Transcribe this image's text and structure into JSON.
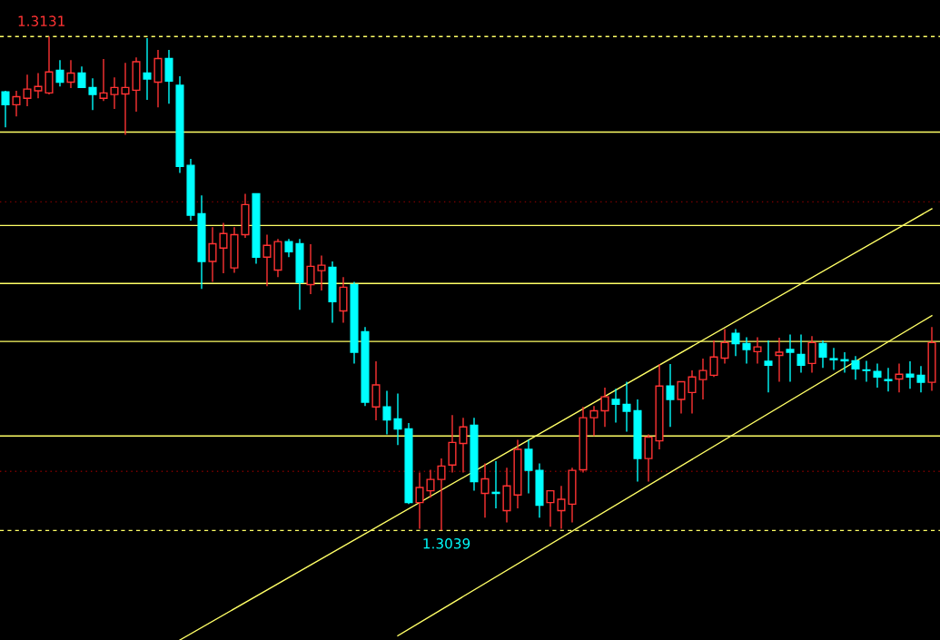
{
  "chart_data": {
    "type": "candlestick",
    "categories": [
      null,
      null,
      null,
      null,
      null,
      null,
      null,
      null,
      null,
      null,
      null,
      null,
      null,
      null,
      null,
      null,
      null,
      null,
      null,
      null,
      null,
      null,
      null,
      null,
      null,
      null,
      null,
      null,
      null,
      null,
      null,
      null,
      null,
      null,
      null,
      null,
      null,
      null,
      null,
      null,
      null,
      null,
      null,
      null,
      null,
      null,
      null,
      null,
      null,
      null,
      null,
      null,
      null,
      null,
      null,
      null,
      null,
      null,
      null,
      null,
      null,
      null,
      null,
      null,
      null,
      null,
      null,
      null,
      null,
      null,
      null,
      null,
      null,
      null,
      null,
      null,
      null,
      null,
      null,
      null,
      null,
      null,
      null,
      null,
      null,
      null
    ],
    "ohlc": [
      [
        1.31207,
        1.31209,
        1.31141,
        1.31183
      ],
      [
        1.31183,
        1.31209,
        1.31161,
        1.31198
      ],
      [
        1.31195,
        1.31239,
        1.3118,
        1.31212
      ],
      [
        1.31209,
        1.31242,
        1.31195,
        1.31217
      ],
      [
        1.31205,
        1.3131,
        1.31202,
        1.31244
      ],
      [
        1.31247,
        1.31266,
        1.31217,
        1.31225
      ],
      [
        1.31225,
        1.31266,
        1.31214,
        1.31242
      ],
      [
        1.31242,
        1.31254,
        1.31214,
        1.31215
      ],
      [
        1.31215,
        1.31232,
        1.31173,
        1.31202
      ],
      [
        1.31195,
        1.31268,
        1.3119,
        1.31205
      ],
      [
        1.31202,
        1.31234,
        1.31175,
        1.31215
      ],
      [
        1.31203,
        1.31261,
        1.31127,
        1.31215
      ],
      [
        1.3121,
        1.31271,
        1.3117,
        1.31263
      ],
      [
        1.31242,
        1.31307,
        1.31192,
        1.31231
      ],
      [
        1.31225,
        1.31285,
        1.31178,
        1.31269
      ],
      [
        1.31269,
        1.31285,
        1.31185,
        1.31227
      ],
      [
        1.31219,
        1.31236,
        1.31056,
        1.31068
      ],
      [
        1.3107,
        1.31082,
        1.30967,
        1.30977
      ],
      [
        1.3098,
        1.31014,
        1.3084,
        1.30891
      ],
      [
        1.30891,
        1.30955,
        1.30853,
        1.30924
      ],
      [
        1.30916,
        1.30963,
        1.30869,
        1.30943
      ],
      [
        1.30879,
        1.30955,
        1.3087,
        1.30941
      ],
      [
        1.30941,
        1.31017,
        1.30935,
        1.30997
      ],
      [
        1.31017,
        1.31017,
        1.30887,
        1.30899
      ],
      [
        1.30899,
        1.30941,
        1.30845,
        1.30921
      ],
      [
        1.30875,
        1.30933,
        1.30862,
        1.30928
      ],
      [
        1.30928,
        1.30933,
        1.30899,
        1.30909
      ],
      [
        1.30924,
        1.30933,
        1.30801,
        1.30852
      ],
      [
        1.30848,
        1.30923,
        1.3083,
        1.30882
      ],
      [
        1.30874,
        1.30902,
        1.30837,
        1.30884
      ],
      [
        1.3088,
        1.30891,
        1.30777,
        1.30816
      ],
      [
        1.30799,
        1.30862,
        1.30777,
        1.30843
      ],
      [
        1.30848,
        1.30853,
        1.30701,
        1.30722
      ],
      [
        1.3076,
        1.30769,
        1.30622,
        1.30629
      ],
      [
        1.3062,
        1.30705,
        1.30595,
        1.30661
      ],
      [
        1.3062,
        1.3065,
        1.30569,
        1.30596
      ],
      [
        1.30598,
        1.30645,
        1.30549,
        1.30579
      ],
      [
        1.30579,
        1.3059,
        1.30439,
        1.30442
      ],
      [
        1.30442,
        1.30498,
        1.30393,
        1.3047
      ],
      [
        1.30464,
        1.30503,
        1.30451,
        1.30485
      ],
      [
        1.30485,
        1.30524,
        1.3039,
        1.3051
      ],
      [
        1.30512,
        1.30605,
        1.30498,
        1.30554
      ],
      [
        1.30552,
        1.306,
        1.30498,
        1.30583
      ],
      [
        1.30586,
        1.306,
        1.30464,
        1.30481
      ],
      [
        1.30459,
        1.30515,
        1.30414,
        1.30486
      ],
      [
        1.30461,
        1.30519,
        1.30431,
        1.30459
      ],
      [
        1.30427,
        1.30507,
        1.30405,
        1.30473
      ],
      [
        1.30456,
        1.30559,
        1.30431,
        1.30541
      ],
      [
        1.30541,
        1.30559,
        1.30459,
        1.30502
      ],
      [
        1.30502,
        1.30515,
        1.30414,
        1.30437
      ],
      [
        1.30442,
        1.30464,
        1.30397,
        1.30464
      ],
      [
        1.30427,
        1.30473,
        1.30393,
        1.30448
      ],
      [
        1.30439,
        1.30507,
        1.30405,
        1.30502
      ],
      [
        1.30503,
        1.3062,
        1.30498,
        1.306
      ],
      [
        1.306,
        1.30622,
        1.30566,
        1.30613
      ],
      [
        1.30613,
        1.30656,
        1.30583,
        1.30639
      ],
      [
        1.30634,
        1.30654,
        1.30591,
        1.30625
      ],
      [
        1.30625,
        1.30667,
        1.30574,
        1.30612
      ],
      [
        1.30613,
        1.30634,
        1.30481,
        1.30524
      ],
      [
        1.30524,
        1.30569,
        1.30481,
        1.30564
      ],
      [
        1.30557,
        1.307,
        1.30541,
        1.30659
      ],
      [
        1.30659,
        1.307,
        1.30583,
        1.30634
      ],
      [
        1.30634,
        1.30667,
        1.30608,
        1.30667
      ],
      [
        1.30647,
        1.30688,
        1.30608,
        1.30676
      ],
      [
        1.30671,
        1.3071,
        1.30634,
        1.30688
      ],
      [
        1.30679,
        1.30744,
        1.30676,
        1.30713
      ],
      [
        1.30711,
        1.30765,
        1.30701,
        1.3074
      ],
      [
        1.30757,
        1.30765,
        1.30715,
        1.30738
      ],
      [
        1.30738,
        1.3075,
        1.30701,
        1.30727
      ],
      [
        1.30723,
        1.3075,
        1.30701,
        1.30732
      ],
      [
        1.30705,
        1.30744,
        1.30647,
        1.30698
      ],
      [
        1.30716,
        1.30749,
        1.30667,
        1.30722
      ],
      [
        1.30727,
        1.30755,
        1.30667,
        1.30722
      ],
      [
        1.30718,
        1.30755,
        1.30684,
        1.30698
      ],
      [
        1.30701,
        1.30752,
        1.30684,
        1.3074
      ],
      [
        1.30738,
        1.30744,
        1.30693,
        1.30713
      ],
      [
        1.3071,
        1.3073,
        1.30689,
        1.30708
      ],
      [
        1.30708,
        1.30722,
        1.30684,
        1.30706
      ],
      [
        1.30706,
        1.30715,
        1.30671,
        1.30691
      ],
      [
        1.30689,
        1.30706,
        1.30667,
        1.30688
      ],
      [
        1.30686,
        1.30701,
        1.30656,
        1.30676
      ],
      [
        1.30671,
        1.30693,
        1.30649,
        1.30669
      ],
      [
        1.30672,
        1.30701,
        1.30647,
        1.30681
      ],
      [
        1.30681,
        1.30705,
        1.30654,
        1.30676
      ],
      [
        1.30679,
        1.30696,
        1.30647,
        1.30666
      ],
      [
        1.30666,
        1.30769,
        1.3065,
        1.3074
      ]
    ],
    "series": [
      {
        "type": "line",
        "color": "#ffff66",
        "values": [
          null,
          null,
          null,
          null,
          null,
          null,
          null,
          null,
          null,
          null,
          null,
          null,
          null,
          null,
          null,
          null,
          1.30186,
          null,
          null,
          null,
          null,
          null,
          null,
          null,
          null,
          null,
          null,
          null,
          null,
          null,
          null,
          null,
          null,
          null,
          null,
          null,
          null,
          null,
          null,
          null,
          null,
          null,
          null,
          null,
          null,
          null,
          null,
          null,
          null,
          null,
          null,
          null,
          null,
          null,
          null,
          null,
          null,
          null,
          null,
          null,
          null,
          null,
          null,
          null,
          null,
          null,
          null,
          null,
          null,
          null,
          null,
          null,
          null,
          null,
          null,
          null,
          null,
          null,
          null,
          null,
          null,
          null,
          null,
          null,
          null,
          1.30989
        ]
      },
      {
        "type": "line",
        "color": "#ffff66",
        "values": [
          null,
          null,
          null,
          null,
          null,
          null,
          null,
          null,
          null,
          null,
          null,
          null,
          null,
          null,
          null,
          null,
          null,
          null,
          null,
          null,
          null,
          null,
          null,
          null,
          null,
          null,
          null,
          null,
          null,
          null,
          null,
          null,
          null,
          null,
          null,
          null,
          1.30194,
          null,
          null,
          null,
          null,
          null,
          null,
          null,
          null,
          null,
          null,
          null,
          null,
          null,
          null,
          null,
          null,
          null,
          null,
          null,
          null,
          null,
          null,
          null,
          null,
          null,
          null,
          null,
          null,
          null,
          null,
          null,
          null,
          null,
          null,
          null,
          null,
          null,
          null,
          null,
          null,
          null,
          null,
          null,
          null,
          null,
          null,
          null,
          null,
          1.3079
        ]
      }
    ],
    "colors": [
      "#00ffff",
      "#ff3333",
      "#ff3333",
      "#ff3333",
      "#ff3333",
      "#00ffff",
      "#ff3333",
      "#00ffff",
      "#00ffff",
      "#ff3333",
      "#ff3333",
      "#ff3333",
      "#ff3333",
      "#00ffff",
      "#ff3333",
      "#00ffff",
      "#00ffff",
      "#00ffff",
      "#00ffff",
      "#ff3333",
      "#ff3333",
      "#ff3333",
      "#ff3333",
      "#00ffff",
      "#ff3333",
      "#ff3333",
      "#00ffff",
      "#00ffff",
      "#ff3333",
      "#ff3333",
      "#00ffff",
      "#ff3333",
      "#00ffff",
      "#00ffff",
      "#ff3333",
      "#00ffff",
      "#00ffff",
      "#00ffff",
      "#ff3333",
      "#ff3333",
      "#ff3333",
      "#ff3333",
      "#ff3333",
      "#00ffff",
      "#ff3333",
      "#00ffff",
      "#ff3333",
      "#ff3333",
      "#00ffff",
      "#00ffff",
      "#ff3333",
      "#ff3333",
      "#ff3333",
      "#ff3333",
      "#ff3333",
      "#ff3333",
      "#00ffff",
      "#00ffff",
      "#00ffff",
      "#ff3333",
      "#ff3333",
      "#00ffff",
      "#ff3333",
      "#ff3333",
      "#ff3333",
      "#ff3333",
      "#ff3333",
      "#00ffff",
      "#00ffff",
      "#ff3333",
      "#00ffff",
      "#ff3333",
      "#00ffff",
      "#00ffff",
      "#ff3333",
      "#00ffff",
      "#00ffff",
      "#00ffff",
      "#00ffff",
      "#00ffff",
      "#00ffff",
      "#00ffff",
      "#ff3333",
      "#00ffff",
      "#00ffff",
      "#ff3333"
    ],
    "ylim": [
      1.30186,
      1.31378
    ],
    "ref_lines": [
      {
        "axis": "y",
        "value": 1.3131,
        "color": "#ffff66",
        "line_style": "dashed"
      },
      {
        "axis": "y",
        "value": 1.31132,
        "color": "#ffff66",
        "line_style": "solid"
      },
      {
        "axis": "y",
        "value": 1.31002,
        "color": "#800000",
        "line_style": "dotted"
      },
      {
        "axis": "y",
        "value": 1.30958,
        "color": "#ffff66",
        "line_style": "solid"
      },
      {
        "axis": "y",
        "value": 1.3085,
        "color": "#ffff66",
        "line_style": "solid"
      },
      {
        "axis": "y",
        "value": 1.30742,
        "color": "#ffff66",
        "line_style": "solid"
      },
      {
        "axis": "y",
        "value": 1.30566,
        "color": "#ffff66",
        "line_style": "solid"
      },
      {
        "axis": "y",
        "value": 1.305,
        "color": "#800000",
        "line_style": "dotted"
      },
      {
        "axis": "y",
        "value": 1.3039,
        "color": "#ffff66",
        "line_style": "dashed"
      }
    ],
    "annotations": [
      {
        "text": "1.3131",
        "y": 1.3131
      },
      {
        "text": "1.3039",
        "y": 1.3039
      }
    ],
    "tick_labels": false
  }
}
